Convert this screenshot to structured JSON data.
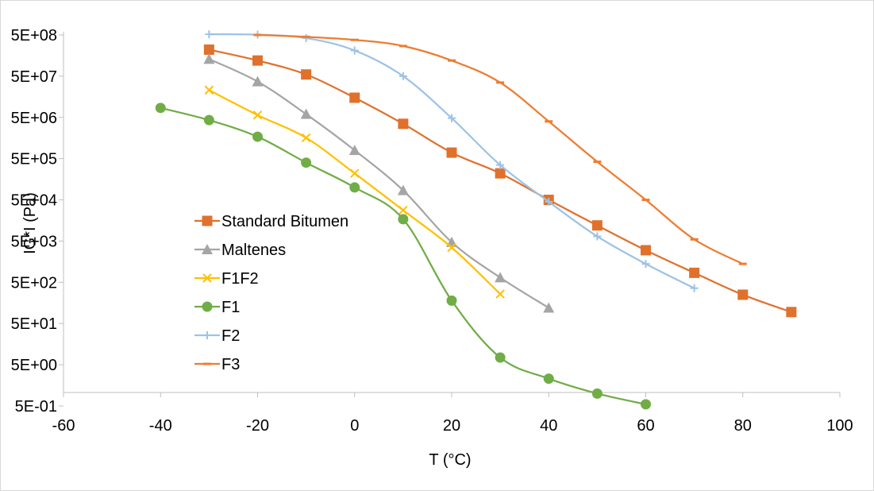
{
  "chart_data": {
    "type": "scatter",
    "xlabel": "T (°C)",
    "ylabel": "IG*I (Pa)",
    "xlim": [
      -60,
      100
    ],
    "ylim": [
      0.5,
      500000000
    ],
    "y_scale": "log",
    "x_ticks": [
      -60,
      -40,
      -20,
      0,
      20,
      40,
      60,
      80,
      100
    ],
    "x_tick_labels": [
      "-60",
      "-40",
      "-20",
      "0",
      "20",
      "40",
      "60",
      "80",
      "100"
    ],
    "y_ticks": [
      0.5,
      5,
      50,
      500,
      5000,
      50000,
      500000,
      5000000,
      50000000,
      500000000
    ],
    "y_tick_labels": [
      "5E-01",
      "5E+00",
      "5E+01",
      "5E+02",
      "5E+03",
      "5E+04",
      "5E+05",
      "5E+06",
      "5E+07",
      "5E+08"
    ],
    "grid": false,
    "legend_position": "center-left",
    "series": [
      {
        "name": "Standard Bitumen",
        "color": "#E0712C",
        "marker": "square",
        "x": [
          -30,
          -20,
          -10,
          0,
          10,
          20,
          30,
          40,
          50,
          60,
          70,
          80,
          90
        ],
        "y": [
          220000000,
          120000000,
          55000000,
          15000000,
          3500000,
          700000,
          220000,
          50000,
          12000,
          3000,
          850,
          250,
          95
        ]
      },
      {
        "name": "Maltenes",
        "color": "#A5A5A5",
        "marker": "triangle",
        "x": [
          -30,
          -20,
          -10,
          0,
          10,
          20,
          30,
          40
        ],
        "y": [
          130000000,
          37000000,
          6000000,
          800000,
          85000,
          4700,
          650,
          120
        ]
      },
      {
        "name": "F1F2",
        "color": "#FFC000",
        "marker": "x",
        "x": [
          -30,
          -20,
          -10,
          0,
          10,
          20,
          30
        ],
        "y": [
          23000000,
          5700000,
          1600000,
          220000,
          28000,
          3500,
          260
        ]
      },
      {
        "name": "F1",
        "color": "#70AD47",
        "marker": "circle",
        "x": [
          -40,
          -30,
          -20,
          -10,
          0,
          10,
          20,
          30,
          40,
          50,
          60
        ],
        "y": [
          8500000,
          4300000,
          1700000,
          400000,
          100000,
          17000,
          180,
          7.5,
          2.3,
          1.0,
          0.55
        ]
      },
      {
        "name": "F2",
        "color": "#9DC3E6",
        "marker": "plus",
        "x": [
          -30,
          -20,
          -10,
          0,
          10,
          20,
          30,
          40,
          50,
          60,
          70
        ],
        "y": [
          520000000,
          510000000,
          420000000,
          210000000,
          50000000,
          4800000,
          350000,
          45000,
          6500,
          1400,
          360
        ]
      },
      {
        "name": "F3",
        "color": "#ED7D31",
        "marker": "dash",
        "x": [
          -20,
          -10,
          0,
          10,
          20,
          30,
          40,
          50,
          60,
          70,
          80
        ],
        "y": [
          500000000,
          450000000,
          380000000,
          270000000,
          120000000,
          35000000,
          4000000,
          420000,
          50000,
          5500,
          1400
        ]
      }
    ]
  }
}
